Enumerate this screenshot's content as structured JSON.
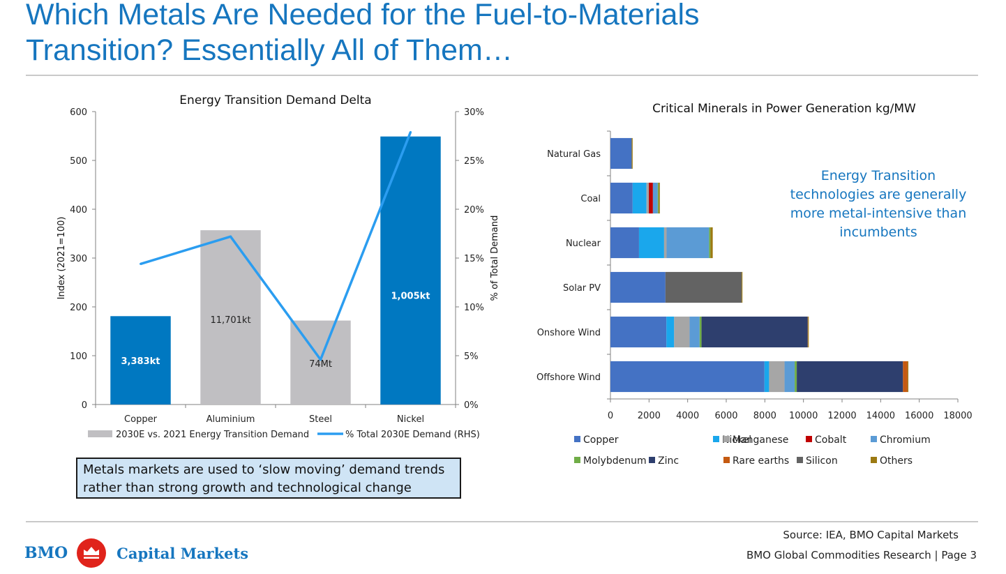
{
  "slide": {
    "title_line1": "Which Metals Are Needed for the Fuel-to-Materials",
    "title_line2": "Transition?  Essentially All of Them…",
    "note": "Metals markets are used to ‘slow moving’ demand trends rather than strong growth and technological change",
    "callout": [
      "Energy Transition",
      "technologies are generally",
      "more metal-intensive than",
      "incumbents"
    ],
    "source": "Source: IEA, BMO Capital Markets",
    "footer": "BMO Global Commodities Research | Page 3",
    "brand": {
      "name": "BMO",
      "division": "Capital Markets",
      "logo_icon": "bmo-roundel-icon",
      "brand_color": "#1676bf",
      "logo_color": "#e0231b"
    }
  },
  "chart_data": [
    {
      "type": "bar",
      "title": "Energy Transition Demand Delta",
      "categories": [
        "Copper",
        "Aluminium",
        "Steel",
        "Nickel"
      ],
      "ylabel": "Index (2021=100)",
      "y2label": "% of Total Demand",
      "ylim": [
        0,
        600
      ],
      "yticks": [
        "0",
        "100",
        "200",
        "300",
        "400",
        "500",
        "600"
      ],
      "y2lim": [
        0,
        30
      ],
      "y2ticks": [
        "0%",
        "5%",
        "10%",
        "15%",
        "20%",
        "25%",
        "30%"
      ],
      "series": [
        {
          "name": "2030E vs. 2021 Energy Transition Demand",
          "kind": "bar",
          "values": [
            181,
            357,
            172,
            549
          ],
          "labels": [
            "3,383kt",
            "11,701kt",
            "74Mt",
            "1,005kt"
          ],
          "colors": [
            "#0078c1",
            "#c0bfc2",
            "#c0bfc2",
            "#0078c1"
          ],
          "legend_color": "#c0bfc2"
        },
        {
          "name": "% Total 2030E Demand (RHS)",
          "kind": "line",
          "axis": "right",
          "values": [
            14.4,
            17.2,
            4.6,
            27.9
          ],
          "color": "#2b9df0"
        }
      ]
    },
    {
      "type": "bar",
      "orientation": "horizontal",
      "stacked": true,
      "title": "Critical Minerals in Power Generation kg/MW",
      "categories": [
        "Natural Gas",
        "Coal",
        "Nuclear",
        "Solar PV",
        "Onshore Wind",
        "Offshore Wind"
      ],
      "xlim": [
        0,
        18000
      ],
      "xticks": [
        "0",
        "2000",
        "4000",
        "6000",
        "8000",
        "10000",
        "12000",
        "14000",
        "16000",
        "18000"
      ],
      "legend_position": "bottom",
      "series": [
        {
          "name": "Copper",
          "color": "#4472c4",
          "values": [
            1100,
            1150,
            1480,
            2850,
            2900,
            7980
          ]
        },
        {
          "name": "Nickel",
          "color": "#1aa7ec",
          "values": [
            0,
            720,
            1300,
            0,
            400,
            240
          ]
        },
        {
          "name": "Manganese",
          "color": "#a6a6a6",
          "values": [
            0,
            120,
            130,
            0,
            800,
            800
          ]
        },
        {
          "name": "Cobalt",
          "color": "#c00000",
          "values": [
            0,
            210,
            0,
            0,
            0,
            0
          ]
        },
        {
          "name": "Chromium",
          "color": "#5b9bd5",
          "values": [
            0,
            250,
            2200,
            0,
            520,
            525
          ]
        },
        {
          "name": "Molybdenum",
          "color": "#70ad47",
          "values": [
            0,
            50,
            70,
            0,
            100,
            110
          ]
        },
        {
          "name": "Zinc",
          "color": "#2e3f6e",
          "values": [
            0,
            0,
            0,
            0,
            5500,
            5500
          ]
        },
        {
          "name": "Rare earths",
          "color": "#c55a11",
          "values": [
            0,
            0,
            0,
            0,
            15,
            240
          ]
        },
        {
          "name": "Silicon",
          "color": "#636363",
          "values": [
            0,
            0,
            0,
            3950,
            0,
            0
          ]
        },
        {
          "name": "Others",
          "color": "#9c7a12",
          "values": [
            50,
            60,
            120,
            40,
            40,
            40
          ]
        }
      ]
    }
  ]
}
